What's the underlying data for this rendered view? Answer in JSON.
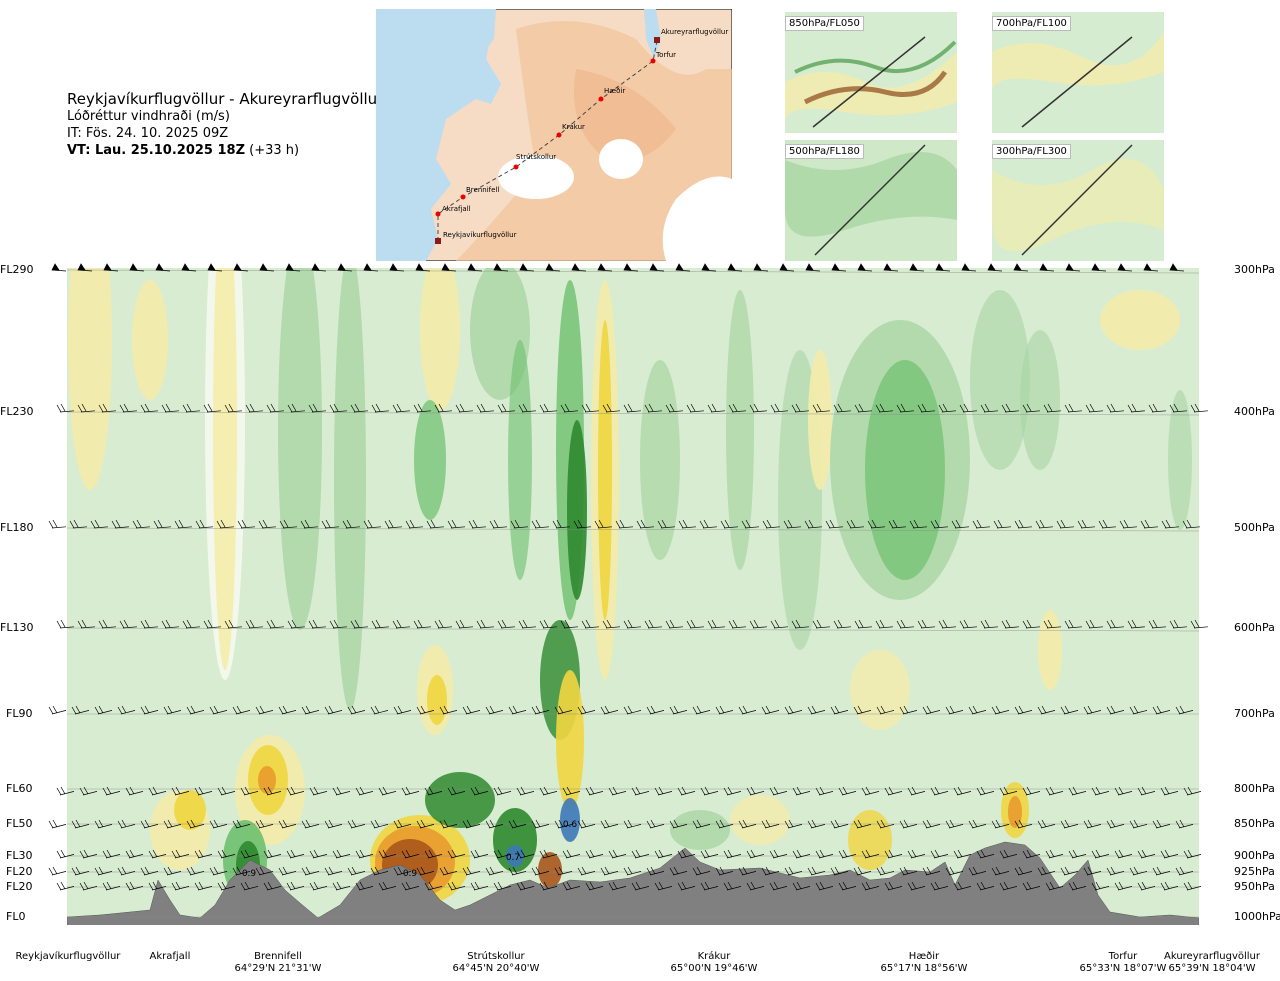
{
  "header": {
    "title": "Reykjavíkurflugvöllur - Akureyrarflugvöllur",
    "variable": "Lóðréttur vindhraði (m/s)",
    "issue_time": "IT: Fös. 24. 10. 2025 09Z",
    "valid_time_bold": "VT: Lau. 25.10.2025 18Z",
    "valid_time_suffix": "(+33 h)"
  },
  "map": {
    "route_points": [
      "Reykjavíkurflugvöllur",
      "Akrafjall",
      "Brennifell",
      "Strútskollur",
      "Krákur",
      "Hæðir",
      "Torfur",
      "Akureyrarflugvöllur"
    ]
  },
  "thumbnails": [
    {
      "label": "850hPa/FL050"
    },
    {
      "label": "700hPa/FL100"
    },
    {
      "label": "500hPa/FL180"
    },
    {
      "label": "300hPa/FL300"
    }
  ],
  "chart_data": {
    "type": "heatmap",
    "x_axis": "route distance, Reykjavíkurflugvöllur to Akureyrarflugvöllur",
    "flight_levels": [
      {
        "label": "FL290",
        "pressure": "300hPa"
      },
      {
        "label": "FL230",
        "pressure": "400hPa"
      },
      {
        "label": "FL180",
        "pressure": "500hPa"
      },
      {
        "label": "FL130",
        "pressure": "600hPa"
      },
      {
        "label": "FL90",
        "pressure": "700hPa"
      },
      {
        "label": "FL60",
        "pressure": "800hPa"
      },
      {
        "label": "FL50",
        "pressure": "850hPa"
      },
      {
        "label": "FL30",
        "pressure": "900hPa"
      },
      {
        "label": "FL20",
        "pressure": "925hPa"
      },
      {
        "label": "FL20",
        "pressure": "950hPa"
      },
      {
        "label": "FL0",
        "pressure": "1000hPa"
      }
    ],
    "locations": [
      {
        "name": "Reykjavíkurflugvöllur",
        "coord": ""
      },
      {
        "name": "Akrafjall",
        "coord": ""
      },
      {
        "name": "Brennifell",
        "coord": "64°29'N 21°31'W"
      },
      {
        "name": "Strútskollur",
        "coord": "64°45'N 20°40'W"
      },
      {
        "name": "Krákur",
        "coord": "65°00'N 19°46'W"
      },
      {
        "name": "Hæðir",
        "coord": "65°17'N 18°56'W"
      },
      {
        "name": "Torfur",
        "coord": "65°33'N 18°07'W"
      },
      {
        "name": "Akureyrarflugvöllur",
        "coord": "65°39'N 18°04'W"
      }
    ],
    "annotations": [
      {
        "text": "0.9",
        "near": "Akrafjall-Brennifell, FL20"
      },
      {
        "text": "0.9",
        "near": "Brennifell-Strútskollur, FL20"
      },
      {
        "text": "0.7",
        "near": "Strútskollur, FL30"
      },
      {
        "text": "0.6",
        "near": "Strútskollur-Krákur, FL50"
      }
    ],
    "colors": {
      "strong_down_dark": "#2f8a2f",
      "down": "#6ec06e",
      "weak_down": "#a9d6a3",
      "neutral": "#d7ecd1",
      "neutral_white": "#f6faf0",
      "weak_up": "#f4ecaa",
      "up": "#f0d640",
      "strong_up": "#e89b2d",
      "very_strong_up": "#a8561d",
      "peak_down": "#3d78b8",
      "terrain": "#808080"
    }
  }
}
